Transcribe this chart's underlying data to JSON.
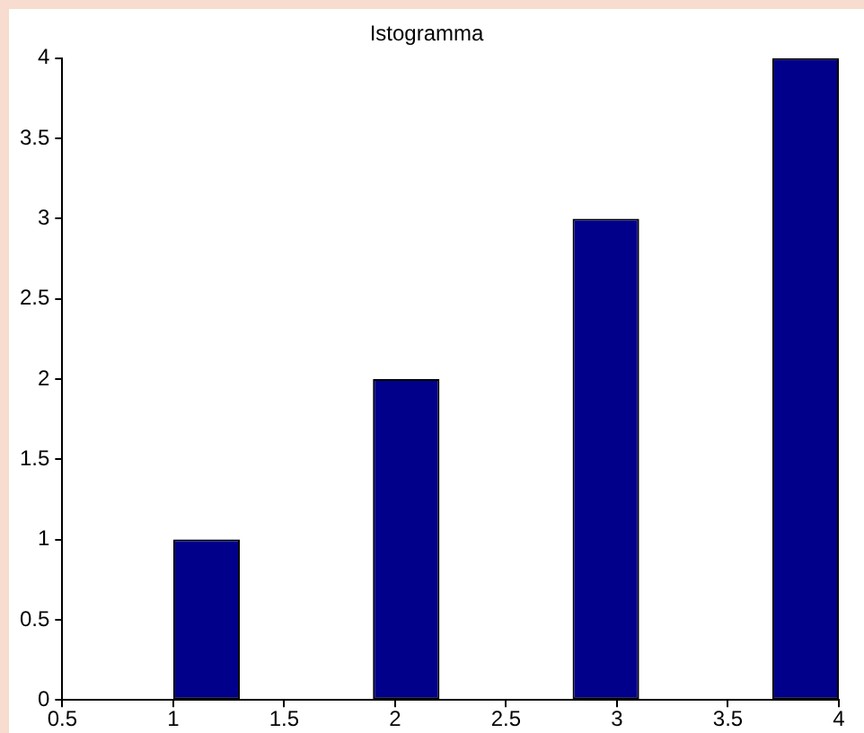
{
  "chart_data": {
    "type": "histogram",
    "title": "Istogramma",
    "bins": [
      1,
      1.3,
      1.6,
      1.9,
      2.2,
      2.5,
      2.8,
      3.1,
      3.4,
      3.7,
      4
    ],
    "values": [
      1,
      0,
      0,
      2,
      0,
      0,
      3,
      0,
      0,
      4
    ],
    "color": "#00008b",
    "xlim": [
      0.5,
      4
    ],
    "xticks": [
      0.5,
      1,
      1.5,
      2,
      2.5,
      3,
      3.5,
      4
    ],
    "ylim": [
      0,
      4
    ],
    "yticks": [
      0,
      0.5,
      1,
      1.5,
      2,
      2.5,
      3,
      3.5,
      4
    ],
    "grid": false,
    "legend": false
  }
}
